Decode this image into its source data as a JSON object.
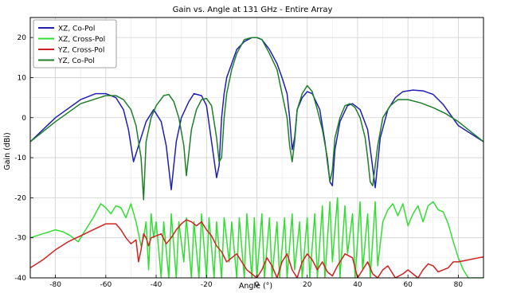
{
  "chart_data": {
    "type": "line",
    "title": "Gain vs. Angle at 131 GHz - Entire Array",
    "xlabel": "Angle (°)",
    "ylabel": "Gain (dBi)",
    "xlim": [
      -90,
      90
    ],
    "ylim": [
      -40,
      25
    ],
    "xticks": [
      -80,
      -60,
      -40,
      -20,
      0,
      20,
      40,
      60,
      80
    ],
    "yticks": [
      -40,
      -30,
      -20,
      -10,
      0,
      10,
      20
    ],
    "grid": true,
    "legend_position": "top-left",
    "series": [
      {
        "name": "XZ, Co-Pol",
        "color": "#1f1fb4",
        "x": [
          -90,
          -80,
          -70,
          -64,
          -60,
          -56,
          -53,
          -51,
          -49,
          -47,
          -44,
          -41,
          -38,
          -36,
          -34,
          -32,
          -30,
          -27,
          -25,
          -22,
          -20,
          -18,
          -16,
          -15,
          -14,
          -13,
          -12,
          -10,
          -8,
          -5,
          -2,
          0,
          2,
          5,
          8,
          10,
          12,
          13,
          14,
          15,
          16,
          18,
          20,
          22,
          25,
          27,
          29,
          30,
          31,
          33,
          36,
          38,
          41,
          44,
          45.5,
          47,
          49,
          52,
          55,
          58,
          62,
          66,
          70,
          74,
          80,
          85,
          90
        ],
        "y": [
          -6,
          0,
          4.5,
          6,
          6,
          5,
          2,
          -3,
          -11,
          -7,
          -1,
          2,
          -1,
          -7,
          -18,
          -6,
          0,
          4,
          6,
          5.5,
          3,
          -6,
          -15,
          -12,
          0,
          6,
          10,
          13.5,
          17,
          19,
          20,
          20,
          19.5,
          17,
          13.5,
          10,
          6,
          0,
          -8,
          -5,
          2,
          5,
          6.5,
          6,
          2,
          -6,
          -16,
          -17,
          -8,
          -1,
          3,
          3.5,
          2,
          -3,
          -10,
          -17.5,
          -5,
          2,
          5,
          6.5,
          6.9,
          6.7,
          5.8,
          3.3,
          -2,
          -4,
          -6
        ]
      },
      {
        "name": "XZ, Cross-Pol",
        "color": "#33dd33",
        "x": [
          -90,
          -85,
          -80,
          -77,
          -74,
          -71,
          -68,
          -65,
          -62,
          -60,
          -58,
          -56,
          -54,
          -52,
          -50,
          -48,
          -46,
          -45,
          -44,
          -43,
          -42,
          -41,
          -40,
          -38,
          -37,
          -35,
          -34,
          -32,
          -31,
          -29,
          -28,
          -26,
          -25,
          -23,
          -22,
          -20,
          -19,
          -17,
          -16,
          -14,
          -13,
          -11,
          -10,
          -8,
          -7,
          -5,
          -4,
          -2,
          -1,
          0,
          2,
          3,
          5,
          6,
          8,
          9,
          11,
          12,
          14,
          15,
          17,
          18,
          20,
          21,
          23,
          24,
          26,
          27,
          29,
          30,
          32,
          33,
          35,
          36,
          38,
          39,
          41,
          42,
          44,
          45,
          47,
          48,
          50,
          52,
          54,
          56,
          58,
          60,
          62,
          64,
          66,
          68,
          70,
          72,
          74,
          76,
          78,
          80,
          82,
          84,
          86,
          88,
          90
        ],
        "y": [
          -30,
          -29,
          -28,
          -28.5,
          -29.5,
          -31,
          -28,
          -25,
          -21.5,
          -22.5,
          -24,
          -22,
          -22.5,
          -25,
          -21.5,
          -26,
          -32,
          -30,
          -26,
          -38,
          -24,
          -30,
          -26,
          -40,
          -26,
          -40,
          -24,
          -40,
          -26,
          -36,
          -25,
          -40,
          -26,
          -40,
          -24,
          -40,
          -25,
          -40,
          -26,
          -40,
          -25,
          -36,
          -26,
          -40,
          -25,
          -40,
          -24,
          -40,
          -25,
          -40,
          -24,
          -40,
          -25,
          -40,
          -26,
          -40,
          -25,
          -40,
          -24,
          -38,
          -26,
          -40,
          -25,
          -40,
          -24,
          -40,
          -22,
          -40,
          -21,
          -36,
          -20,
          -40,
          -22,
          -34,
          -24,
          -40,
          -21,
          -38,
          -24,
          -40,
          -21,
          -37,
          -26,
          -23,
          -21.5,
          -24.5,
          -21.5,
          -27,
          -24,
          -22,
          -26,
          -22,
          -21,
          -23,
          -23.5,
          -26.5,
          -31,
          -35,
          -38,
          -40,
          -40,
          -40,
          -40
        ]
      },
      {
        "name": "YZ, Cross-Pol",
        "color": "#d22020",
        "x": [
          -90,
          -85,
          -80,
          -75,
          -70,
          -65,
          -60,
          -56,
          -54,
          -52,
          -50,
          -48,
          -47,
          -46,
          -45,
          -44,
          -43,
          -42,
          -40,
          -38,
          -36,
          -34,
          -32,
          -30,
          -28,
          -26,
          -24,
          -22,
          -20,
          -18,
          -16,
          -14,
          -12,
          -10,
          -8,
          -6,
          -4,
          -2,
          0,
          2,
          4,
          6,
          8,
          10,
          12,
          14,
          16,
          18,
          20,
          22,
          24,
          26,
          28,
          30,
          32,
          35,
          38,
          40,
          42,
          44,
          46,
          48,
          50,
          52,
          55,
          58,
          60,
          62,
          64,
          66,
          68,
          70,
          72,
          74,
          76,
          78,
          80,
          84,
          88,
          90
        ],
        "y": [
          -37.5,
          -35.5,
          -33,
          -31,
          -29.5,
          -28,
          -26.5,
          -26.5,
          -28,
          -30,
          -31.5,
          -30.5,
          -36,
          -33,
          -29,
          -30,
          -32,
          -30,
          -29.5,
          -29,
          -31.5,
          -30,
          -28,
          -26.5,
          -25.5,
          -26,
          -27,
          -26,
          -28,
          -29.5,
          -32,
          -33.5,
          -36,
          -35,
          -34,
          -36,
          -38,
          -39,
          -40,
          -38,
          -35,
          -37,
          -40,
          -36,
          -34,
          -38,
          -40,
          -36,
          -34,
          -35.5,
          -38,
          -36,
          -38.5,
          -39.5,
          -37,
          -34,
          -35,
          -40,
          -38,
          -36,
          -39,
          -40,
          -38,
          -37,
          -40,
          -39,
          -38,
          -39,
          -40,
          -38,
          -36.5,
          -37,
          -38.5,
          -38,
          -37.5,
          -36,
          -36,
          -35.5,
          -35,
          -34.8
        ]
      },
      {
        "name": "YZ, Co-Pol",
        "color": "#1e7f28",
        "x": [
          -90,
          -80,
          -70,
          -60,
          -56,
          -53,
          -50,
          -48,
          -46,
          -45,
          -44,
          -42,
          -40,
          -37,
          -35,
          -33,
          -31,
          -29,
          -28,
          -26,
          -24,
          -22,
          -20,
          -18,
          -16,
          -15,
          -14,
          -13,
          -12,
          -10,
          -8,
          -5,
          -2,
          0,
          2,
          5,
          8,
          10,
          12,
          13,
          14,
          15,
          16,
          18,
          20,
          22,
          24,
          26,
          28,
          29,
          30,
          31,
          33,
          35,
          37,
          39,
          41,
          43,
          44,
          45,
          46,
          48,
          50,
          53,
          56,
          60,
          65,
          70,
          75,
          80,
          85,
          90
        ],
        "y": [
          -6,
          -1,
          3.5,
          5.5,
          5.5,
          4.5,
          2,
          -2,
          -10,
          -20.5,
          -6,
          0,
          3,
          5.5,
          5.8,
          4,
          0,
          -7,
          -14.5,
          -3,
          2,
          4.5,
          4.8,
          3,
          -5,
          -11,
          -10,
          0,
          6,
          12,
          16,
          19.5,
          20,
          20,
          19.5,
          16,
          12,
          6,
          0,
          -7,
          -11,
          -6,
          2,
          6,
          8,
          6.5,
          2,
          -3,
          -10,
          -16,
          -13,
          -5,
          0,
          3,
          3.5,
          2.5,
          0,
          -5,
          -10,
          -16,
          -17,
          -7,
          0,
          3,
          4.5,
          4.5,
          3.7,
          2.5,
          1,
          -1,
          -3.5,
          -6
        ]
      }
    ]
  }
}
